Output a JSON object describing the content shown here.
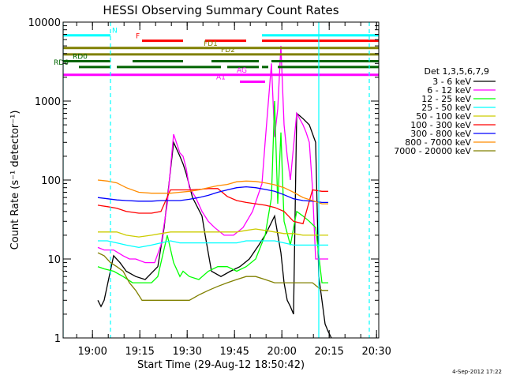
{
  "chart_data": {
    "type": "line",
    "title": "HESSI Observing Summary Count Rates",
    "xlabel": "Start Time (29-Aug-12 18:50:42)",
    "ylabel": "Count Rate (s⁻¹ detector⁻¹)",
    "yscale": "log",
    "ylim": [
      1,
      10000
    ],
    "xlim_minutes": [
      0,
      100
    ],
    "x_tick_labels": [
      "19:00",
      "19:15",
      "19:30",
      "19:45",
      "20:00",
      "20:15",
      "20:30"
    ],
    "x_tick_values": [
      9.3,
      24.3,
      39.3,
      54.3,
      69.3,
      84.3,
      99.3
    ],
    "y_tick_labels": [
      "1",
      "10",
      "100",
      "1000",
      "10000"
    ],
    "y_tick_values": [
      1,
      10,
      100,
      1000,
      10000
    ],
    "legend_title": "Det 1,3,5,6,7,9",
    "legend_placement": "right",
    "timestamp": "4-Sep-2012 17:22",
    "series": [
      {
        "name": "3 - 6 keV",
        "color": "#000000",
        "points": [
          [
            11,
            3
          ],
          [
            12,
            2.5
          ],
          [
            13,
            3
          ],
          [
            16,
            11
          ],
          [
            18,
            9
          ],
          [
            20,
            7
          ],
          [
            23,
            6
          ],
          [
            26,
            5.5
          ],
          [
            30,
            8
          ],
          [
            32,
            25
          ],
          [
            35,
            300
          ],
          [
            37,
            200
          ],
          [
            38,
            160
          ],
          [
            39,
            120
          ],
          [
            41,
            60
          ],
          [
            44,
            35
          ],
          [
            45,
            20
          ],
          [
            47,
            7
          ],
          [
            50,
            6
          ],
          [
            53,
            7
          ],
          [
            56,
            8
          ],
          [
            59,
            10
          ],
          [
            62,
            15
          ],
          [
            64,
            20
          ],
          [
            67,
            35
          ],
          [
            69,
            12
          ],
          [
            70,
            5
          ],
          [
            71,
            3
          ],
          [
            72,
            2.5
          ],
          [
            73,
            2
          ],
          [
            74,
            700
          ],
          [
            76,
            600
          ],
          [
            78,
            500
          ],
          [
            80,
            300
          ],
          [
            81,
            6
          ],
          [
            82,
            3
          ],
          [
            83,
            1.5
          ],
          [
            84,
            1.2
          ],
          [
            85,
            1
          ]
        ]
      },
      {
        "name": "6 - 12 keV",
        "color": "#ff00ff",
        "points": [
          [
            11,
            14
          ],
          [
            13,
            13
          ],
          [
            16,
            13
          ],
          [
            19,
            11
          ],
          [
            21,
            10
          ],
          [
            23,
            10
          ],
          [
            26,
            9
          ],
          [
            29,
            9
          ],
          [
            31,
            15
          ],
          [
            33,
            50
          ],
          [
            35,
            380
          ],
          [
            37,
            220
          ],
          [
            38,
            200
          ],
          [
            39,
            140
          ],
          [
            40,
            80
          ],
          [
            42,
            60
          ],
          [
            44,
            40
          ],
          [
            46,
            30
          ],
          [
            48,
            25
          ],
          [
            51,
            20
          ],
          [
            54,
            20
          ],
          [
            57,
            25
          ],
          [
            60,
            40
          ],
          [
            63,
            90
          ],
          [
            64,
            300
          ],
          [
            66,
            3000
          ],
          [
            67,
            350
          ],
          [
            68,
            800
          ],
          [
            69,
            5000
          ],
          [
            70,
            500
          ],
          [
            71,
            200
          ],
          [
            72,
            100
          ],
          [
            74,
            700
          ],
          [
            76,
            500
          ],
          [
            77,
            400
          ],
          [
            78,
            300
          ],
          [
            79,
            80
          ],
          [
            80,
            10
          ],
          [
            82,
            10
          ],
          [
            84,
            10
          ]
        ]
      },
      {
        "name": "12 - 25 keV",
        "color": "#00ff00",
        "points": [
          [
            11,
            8
          ],
          [
            13,
            7.5
          ],
          [
            16,
            7
          ],
          [
            19,
            6
          ],
          [
            22,
            5
          ],
          [
            25,
            5
          ],
          [
            28,
            5
          ],
          [
            30,
            6
          ],
          [
            31,
            9
          ],
          [
            33,
            20
          ],
          [
            35,
            9
          ],
          [
            37,
            6
          ],
          [
            38,
            7
          ],
          [
            40,
            6
          ],
          [
            43,
            5.5
          ],
          [
            46,
            7
          ],
          [
            49,
            8
          ],
          [
            52,
            8
          ],
          [
            55,
            7
          ],
          [
            58,
            8
          ],
          [
            61,
            10
          ],
          [
            64,
            20
          ],
          [
            66,
            60
          ],
          [
            67,
            1000
          ],
          [
            68,
            50
          ],
          [
            69,
            400
          ],
          [
            70,
            30
          ],
          [
            72,
            15
          ],
          [
            74,
            40
          ],
          [
            76,
            35
          ],
          [
            78,
            30
          ],
          [
            80,
            25
          ],
          [
            82,
            5
          ],
          [
            84,
            5
          ]
        ]
      },
      {
        "name": "25 - 50 keV",
        "color": "#00ffff",
        "points": [
          [
            11,
            17
          ],
          [
            14,
            17
          ],
          [
            17,
            16
          ],
          [
            20,
            15
          ],
          [
            24,
            14
          ],
          [
            28,
            15
          ],
          [
            31,
            16
          ],
          [
            34,
            17
          ],
          [
            37,
            16
          ],
          [
            40,
            16
          ],
          [
            43,
            16
          ],
          [
            46,
            16
          ],
          [
            49,
            16
          ],
          [
            52,
            16
          ],
          [
            55,
            16
          ],
          [
            58,
            17
          ],
          [
            61,
            17
          ],
          [
            64,
            17
          ],
          [
            67,
            17
          ],
          [
            70,
            16
          ],
          [
            73,
            15
          ],
          [
            76,
            15
          ],
          [
            79,
            15
          ],
          [
            82,
            15
          ],
          [
            84,
            15
          ]
        ]
      },
      {
        "name": "50 - 100 keV",
        "color": "#cccc00",
        "points": [
          [
            11,
            22
          ],
          [
            14,
            22
          ],
          [
            17,
            22
          ],
          [
            20,
            20
          ],
          [
            24,
            19
          ],
          [
            28,
            20
          ],
          [
            31,
            21
          ],
          [
            34,
            22
          ],
          [
            37,
            22
          ],
          [
            40,
            22
          ],
          [
            43,
            22
          ],
          [
            46,
            22
          ],
          [
            49,
            22
          ],
          [
            52,
            22
          ],
          [
            55,
            22
          ],
          [
            58,
            23
          ],
          [
            61,
            24
          ],
          [
            64,
            23
          ],
          [
            67,
            22
          ],
          [
            70,
            21
          ],
          [
            73,
            21
          ],
          [
            76,
            20
          ],
          [
            79,
            20
          ],
          [
            82,
            20
          ],
          [
            84,
            20
          ]
        ]
      },
      {
        "name": "100 - 300 keV",
        "color": "#ff0000",
        "points": [
          [
            11,
            48
          ],
          [
            14,
            46
          ],
          [
            17,
            44
          ],
          [
            20,
            40
          ],
          [
            24,
            38
          ],
          [
            28,
            38
          ],
          [
            31,
            40
          ],
          [
            34,
            75
          ],
          [
            37,
            75
          ],
          [
            40,
            75
          ],
          [
            43,
            76
          ],
          [
            46,
            78
          ],
          [
            49,
            78
          ],
          [
            52,
            62
          ],
          [
            55,
            55
          ],
          [
            58,
            52
          ],
          [
            61,
            50
          ],
          [
            64,
            48
          ],
          [
            67,
            45
          ],
          [
            70,
            40
          ],
          [
            73,
            30
          ],
          [
            76,
            28
          ],
          [
            79,
            75
          ],
          [
            82,
            72
          ],
          [
            84,
            72
          ]
        ]
      },
      {
        "name": "300 - 800 keV",
        "color": "#0000ff",
        "points": [
          [
            11,
            60
          ],
          [
            14,
            58
          ],
          [
            17,
            56
          ],
          [
            20,
            55
          ],
          [
            24,
            54
          ],
          [
            28,
            54
          ],
          [
            31,
            55
          ],
          [
            34,
            55
          ],
          [
            37,
            55
          ],
          [
            40,
            57
          ],
          [
            43,
            60
          ],
          [
            46,
            64
          ],
          [
            49,
            70
          ],
          [
            52,
            75
          ],
          [
            55,
            80
          ],
          [
            58,
            82
          ],
          [
            61,
            80
          ],
          [
            64,
            76
          ],
          [
            67,
            72
          ],
          [
            70,
            65
          ],
          [
            73,
            58
          ],
          [
            76,
            55
          ],
          [
            79,
            54
          ],
          [
            82,
            52
          ],
          [
            84,
            52
          ]
        ]
      },
      {
        "name": "800 - 7000 keV",
        "color": "#ff8c00",
        "points": [
          [
            11,
            100
          ],
          [
            14,
            97
          ],
          [
            17,
            92
          ],
          [
            20,
            80
          ],
          [
            24,
            70
          ],
          [
            28,
            68
          ],
          [
            31,
            68
          ],
          [
            34,
            68
          ],
          [
            37,
            70
          ],
          [
            40,
            72
          ],
          [
            43,
            75
          ],
          [
            46,
            80
          ],
          [
            49,
            85
          ],
          [
            52,
            88
          ],
          [
            55,
            95
          ],
          [
            58,
            97
          ],
          [
            61,
            96
          ],
          [
            64,
            92
          ],
          [
            67,
            87
          ],
          [
            70,
            80
          ],
          [
            73,
            70
          ],
          [
            76,
            60
          ],
          [
            79,
            55
          ],
          [
            82,
            50
          ],
          [
            84,
            50
          ]
        ]
      },
      {
        "name": "7000 - 20000 keV",
        "color": "#808000",
        "points": [
          [
            11,
            12
          ],
          [
            13,
            11
          ],
          [
            15,
            9
          ],
          [
            17,
            8
          ],
          [
            19,
            7
          ],
          [
            21,
            5
          ],
          [
            23,
            4
          ],
          [
            25,
            3
          ],
          [
            28,
            3
          ],
          [
            31,
            3
          ],
          [
            34,
            3
          ],
          [
            37,
            3
          ],
          [
            40,
            3
          ],
          [
            43,
            3.5
          ],
          [
            46,
            4
          ],
          [
            49,
            4.5
          ],
          [
            52,
            5
          ],
          [
            55,
            5.5
          ],
          [
            58,
            6
          ],
          [
            61,
            6
          ],
          [
            64,
            5.5
          ],
          [
            67,
            5
          ],
          [
            70,
            5
          ],
          [
            73,
            5
          ],
          [
            76,
            5
          ],
          [
            79,
            5
          ],
          [
            82,
            4
          ],
          [
            84,
            4
          ]
        ]
      }
    ],
    "flag_bars": [
      {
        "name": "N",
        "color": "#00ffff",
        "y": 6800,
        "segments": [
          [
            0,
            15
          ],
          [
            63,
            100
          ]
        ],
        "label_at": 15.5
      },
      {
        "name": "F",
        "color": "#ff0000",
        "y": 5800,
        "segments": [
          [
            25,
            38
          ],
          [
            45,
            58
          ],
          [
            63,
            100
          ]
        ],
        "label_at": 23
      },
      {
        "name": "FD1",
        "color": "#808000",
        "y": 4700,
        "segments": [
          [
            0,
            100
          ]
        ],
        "label_at": 44.5
      },
      {
        "name": "FD2",
        "color": "#808000",
        "y": 3900,
        "segments": [
          [
            0,
            100
          ]
        ],
        "label_at": 50
      },
      {
        "name": "RD0",
        "color": "#006400",
        "y": 3200,
        "segments": [
          [
            0,
            15
          ],
          [
            22,
            38
          ],
          [
            47,
            62
          ],
          [
            66,
            100
          ]
        ],
        "label_at": 3
      },
      {
        "name": "RD6",
        "color": "#006400",
        "y": 2700,
        "segments": [
          [
            5,
            15
          ],
          [
            17,
            50
          ],
          [
            52,
            62
          ],
          [
            63,
            65
          ],
          [
            68,
            100
          ]
        ],
        "label_at": -3
      },
      {
        "name": "AG",
        "color": "#ff00ff",
        "y": 2150,
        "segments": [
          [
            0,
            100
          ]
        ],
        "label_at": 55
      },
      {
        "name": "A1",
        "color": "#ff00ff",
        "y": 1760,
        "segments": [
          [
            56,
            64
          ]
        ],
        "label_at": 48.5
      }
    ],
    "vlines": [
      {
        "x": 15,
        "color": "#00ffff",
        "style": "dashed"
      },
      {
        "x": 97,
        "color": "#00ffff",
        "style": "dashed"
      },
      {
        "x": 0,
        "color": "#00ffff",
        "style": "solid"
      },
      {
        "x": 81,
        "color": "#00ffff",
        "style": "solid"
      }
    ]
  }
}
